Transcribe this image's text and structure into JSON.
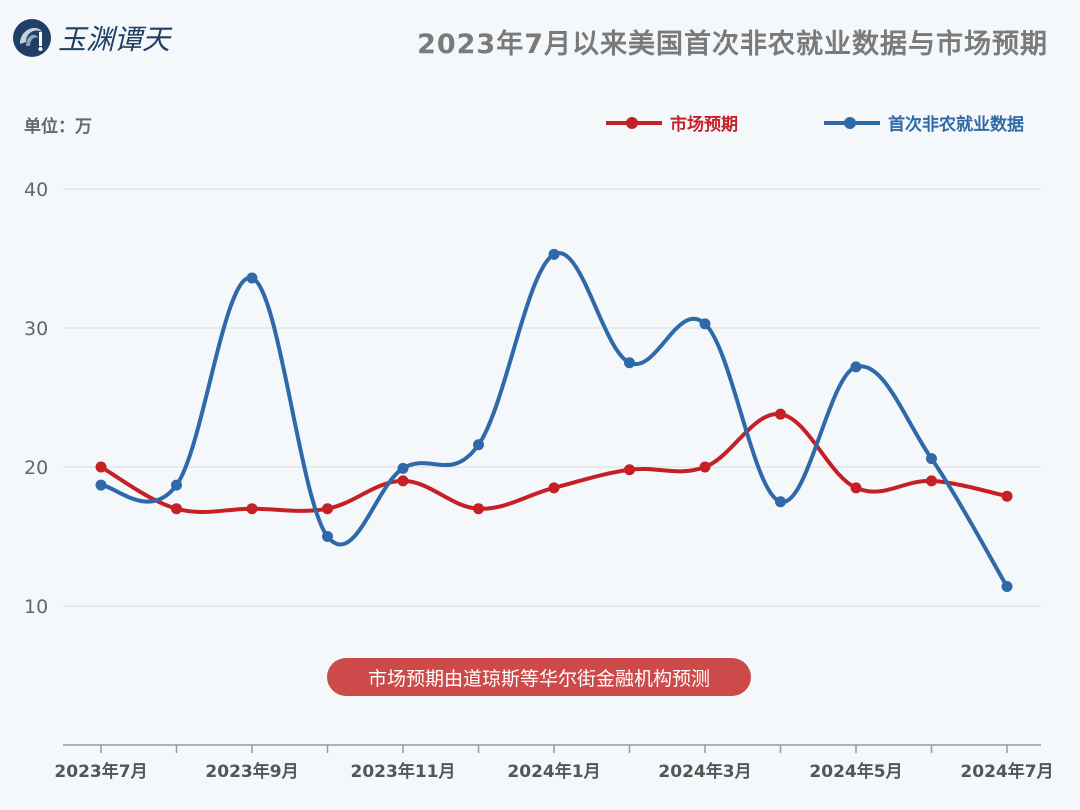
{
  "title": "2023年7月以来美国首次非农就业数据与市场预期",
  "logo": {
    "text": "玉渊谭天"
  },
  "unit_label": "单位：万",
  "note": "市场预期由道琼斯等华尔街金融机构预测",
  "colors": {
    "expected": "#c62027",
    "actual": "#2f69a8",
    "grid": "#d8dde3",
    "background": "#f4f8fb"
  },
  "chart_data": {
    "type": "line",
    "smooth": true,
    "categories": [
      "2023-07",
      "2023-08",
      "2023-09",
      "2023-10",
      "2023-11",
      "2023-12",
      "2024-01",
      "2024-02",
      "2024-03",
      "2024-04",
      "2024-05",
      "2024-06",
      "2024-07"
    ],
    "xtick_labels": [
      "2023年7月",
      "2023年9月",
      "2023年11月",
      "2024年1月",
      "2024年3月",
      "2024年5月",
      "2024年7月"
    ],
    "ylim": [
      0,
      40
    ],
    "yticks": [
      10,
      20,
      30,
      40
    ],
    "grid": true,
    "legend_placement": "top-right",
    "series": [
      {
        "name": "市场预期",
        "color": "#c62027",
        "values": [
          20,
          17,
          17,
          17,
          19,
          17,
          18.5,
          19.8,
          20,
          23.8,
          18.5,
          19,
          17.9
        ]
      },
      {
        "name": "首次非农就业数据",
        "color": "#2f69a8",
        "values": [
          18.7,
          18.7,
          33.6,
          15.0,
          19.9,
          21.6,
          35.3,
          27.5,
          30.3,
          17.5,
          27.2,
          20.6,
          11.4
        ]
      }
    ]
  }
}
